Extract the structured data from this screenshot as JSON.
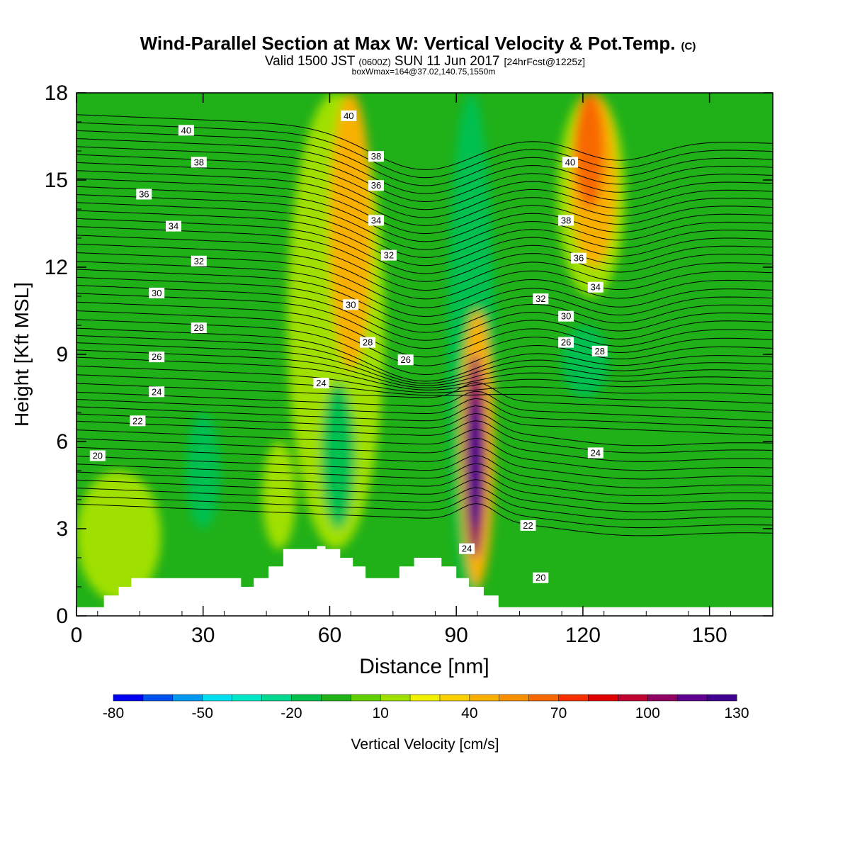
{
  "chart_data": {
    "type": "heatmap",
    "title": "Wind-Parallel Section at Max W: Vertical Velocity & Pot.Temp.",
    "title_suffix": "(C)",
    "subtitle": {
      "prefix": "Valid 1500 JST",
      "utc": "(0600Z)",
      "date": "SUN 11 Jun 2017",
      "forecast": "[24hrFcst@1225z]"
    },
    "subtitle2": "boxWmax=164@37.02,140.75,1550m",
    "xlabel": "Distance [nm]",
    "ylabel": "Height [Kft MSL]",
    "xlim": [
      0,
      165
    ],
    "ylim": [
      0,
      18
    ],
    "xticks": [
      0,
      30,
      60,
      90,
      120,
      150
    ],
    "yticks": [
      0,
      3,
      6,
      9,
      12,
      15,
      18
    ],
    "colorbar": {
      "label": "Vertical Velocity [cm/s]",
      "ticks": [
        -80,
        -50,
        -20,
        10,
        40,
        70,
        100,
        130
      ],
      "levels": [
        -80,
        -70,
        -60,
        -50,
        -40,
        -30,
        -20,
        -10,
        0,
        10,
        20,
        30,
        40,
        50,
        60,
        70,
        80,
        90,
        100,
        110,
        120,
        130
      ],
      "colors": [
        "#0000f0",
        "#0050f0",
        "#0098f0",
        "#00e0f0",
        "#00e8c8",
        "#00d890",
        "#00c050",
        "#20b018",
        "#60d000",
        "#a0e000",
        "#f0f000",
        "#f8d000",
        "#f8b000",
        "#f89000",
        "#f86800",
        "#f83000",
        "#e00000",
        "#c00030",
        "#900060",
        "#600090",
        "#400090"
      ]
    },
    "background_level": "#20b018",
    "velocity_features": [
      {
        "x": [
          50,
          73
        ],
        "z": [
          2.3,
          18
        ],
        "w": 15
      },
      {
        "x": [
          60,
          70
        ],
        "z": [
          8.5,
          18
        ],
        "w": 40
      },
      {
        "x": [
          88,
          99
        ],
        "z": [
          0.5,
          18
        ],
        "w": -20
      },
      {
        "x": [
          91,
          99
        ],
        "z": [
          1.0,
          10.5
        ],
        "w": 40
      },
      {
        "x": [
          92,
          97
        ],
        "z": [
          2.0,
          9.0
        ],
        "w": 100
      },
      {
        "x": [
          93,
          96
        ],
        "z": [
          3.0,
          7.5
        ],
        "w": 130
      },
      {
        "x": [
          114,
          130
        ],
        "z": [
          11,
          18
        ],
        "w": 15
      },
      {
        "x": [
          117,
          128
        ],
        "z": [
          12,
          18
        ],
        "w": 40
      },
      {
        "x": [
          118,
          125
        ],
        "z": [
          14,
          18
        ],
        "w": 60
      },
      {
        "x": [
          26,
          34
        ],
        "z": [
          3,
          7
        ],
        "w": -15
      },
      {
        "x": [
          115,
          126
        ],
        "z": [
          7.5,
          10
        ],
        "w": -15
      },
      {
        "x": [
          58,
          66
        ],
        "z": [
          3,
          8
        ],
        "w": -15
      },
      {
        "x": [
          44,
          52
        ],
        "z": [
          2.3,
          6
        ],
        "w": 10
      },
      {
        "x": [
          0,
          20
        ],
        "z": [
          0.5,
          5
        ],
        "w": 10
      }
    ],
    "potential_temperature_labels": [
      {
        "value": "40",
        "x": 26,
        "z": 16.7
      },
      {
        "value": "38",
        "x": 29,
        "z": 15.6
      },
      {
        "value": "36",
        "x": 16,
        "z": 14.5
      },
      {
        "value": "34",
        "x": 23,
        "z": 13.4
      },
      {
        "value": "32",
        "x": 29,
        "z": 12.2
      },
      {
        "value": "30",
        "x": 19,
        "z": 11.1
      },
      {
        "value": "28",
        "x": 29,
        "z": 9.9
      },
      {
        "value": "26",
        "x": 19,
        "z": 8.9
      },
      {
        "value": "24",
        "x": 19,
        "z": 7.7
      },
      {
        "value": "22",
        "x": 14.5,
        "z": 6.7
      },
      {
        "value": "20",
        "x": 5,
        "z": 5.5
      },
      {
        "value": "40",
        "x": 64.5,
        "z": 17.2
      },
      {
        "value": "38",
        "x": 71,
        "z": 15.8
      },
      {
        "value": "36",
        "x": 71,
        "z": 14.8
      },
      {
        "value": "34",
        "x": 71,
        "z": 13.6
      },
      {
        "value": "32",
        "x": 74,
        "z": 12.4
      },
      {
        "value": "30",
        "x": 65,
        "z": 10.7
      },
      {
        "value": "28",
        "x": 69,
        "z": 9.4
      },
      {
        "value": "26",
        "x": 78,
        "z": 8.8
      },
      {
        "value": "24",
        "x": 58,
        "z": 8.0
      },
      {
        "value": "40",
        "x": 117,
        "z": 15.6
      },
      {
        "value": "38",
        "x": 116,
        "z": 13.6
      },
      {
        "value": "36",
        "x": 119,
        "z": 12.3
      },
      {
        "value": "34",
        "x": 123,
        "z": 11.3
      },
      {
        "value": "32",
        "x": 110,
        "z": 10.9
      },
      {
        "value": "30",
        "x": 116,
        "z": 10.3
      },
      {
        "value": "26",
        "x": 116,
        "z": 9.4
      },
      {
        "value": "28",
        "x": 124,
        "z": 9.1
      },
      {
        "value": "24",
        "x": 123,
        "z": 5.6
      },
      {
        "value": "22",
        "x": 107,
        "z": 3.1
      },
      {
        "value": "24",
        "x": 92.5,
        "z": 2.3
      },
      {
        "value": "20",
        "x": 110,
        "z": 1.3
      }
    ],
    "theta_levels": [
      20,
      22,
      24,
      26,
      28,
      30,
      32,
      34,
      36,
      38,
      40
    ],
    "terrain": [
      {
        "x": 0,
        "z": 0.3
      },
      {
        "x": 6.5,
        "z": 0.3
      },
      {
        "x": 6.5,
        "z": 0.7
      },
      {
        "x": 10,
        "z": 0.7
      },
      {
        "x": 10,
        "z": 1.0
      },
      {
        "x": 13,
        "z": 1.0
      },
      {
        "x": 13,
        "z": 1.3
      },
      {
        "x": 39,
        "z": 1.3
      },
      {
        "x": 39,
        "z": 1.0
      },
      {
        "x": 42,
        "z": 1.0
      },
      {
        "x": 42,
        "z": 1.3
      },
      {
        "x": 45.5,
        "z": 1.3
      },
      {
        "x": 45.5,
        "z": 1.7
      },
      {
        "x": 49,
        "z": 1.7
      },
      {
        "x": 49,
        "z": 2.3
      },
      {
        "x": 57,
        "z": 2.3
      },
      {
        "x": 57,
        "z": 2.4
      },
      {
        "x": 59,
        "z": 2.4
      },
      {
        "x": 59,
        "z": 2.3
      },
      {
        "x": 62.5,
        "z": 2.3
      },
      {
        "x": 62.5,
        "z": 2.0
      },
      {
        "x": 65.5,
        "z": 2.0
      },
      {
        "x": 65.5,
        "z": 1.7
      },
      {
        "x": 68.5,
        "z": 1.7
      },
      {
        "x": 68.5,
        "z": 1.3
      },
      {
        "x": 76.5,
        "z": 1.3
      },
      {
        "x": 76.5,
        "z": 1.7
      },
      {
        "x": 80,
        "z": 1.7
      },
      {
        "x": 80,
        "z": 2.0
      },
      {
        "x": 86.5,
        "z": 2.0
      },
      {
        "x": 86.5,
        "z": 1.7
      },
      {
        "x": 90,
        "z": 1.7
      },
      {
        "x": 90,
        "z": 1.3
      },
      {
        "x": 93,
        "z": 1.3
      },
      {
        "x": 93,
        "z": 1.0
      },
      {
        "x": 96.5,
        "z": 1.0
      },
      {
        "x": 96.5,
        "z": 0.7
      },
      {
        "x": 100,
        "z": 0.7
      },
      {
        "x": 100,
        "z": 0.3
      },
      {
        "x": 165,
        "z": 0.3
      }
    ]
  }
}
